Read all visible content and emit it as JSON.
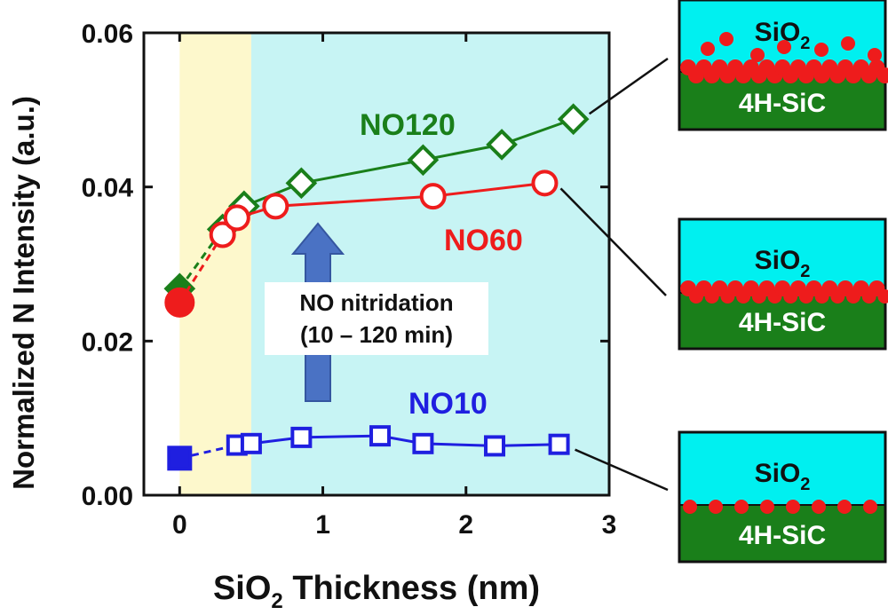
{
  "chart_data": {
    "type": "line",
    "xlabel": "SiO",
    "xlabel_sub": "2",
    "xlabel_rest": " Thickness (nm)",
    "ylabel": "Normalized N Intensity (a.u.)",
    "xlim": [
      -0.25,
      3.0
    ],
    "ylim": [
      0.0,
      0.06
    ],
    "xticks": [
      0,
      1,
      2,
      3
    ],
    "yticks": [
      0.0,
      0.02,
      0.04,
      0.06
    ],
    "xtick_labels": [
      "0",
      "1",
      "2",
      "3"
    ],
    "ytick_labels": [
      "0.00",
      "0.02",
      "0.04",
      "0.06"
    ],
    "regions": [
      {
        "x0": 0.0,
        "x1": 0.5,
        "color": "#fdf8cc"
      },
      {
        "x0": 0.5,
        "x1": 3.0,
        "color": "#c7f4f4"
      }
    ],
    "series": [
      {
        "name": "NO120",
        "color": "#1a7f1a",
        "marker": "diamond",
        "filled_point": {
          "x": 0.0,
          "y": 0.0268
        },
        "x": [
          0.3,
          0.45,
          0.85,
          1.7,
          2.25,
          2.75
        ],
        "y": [
          0.0345,
          0.0375,
          0.0405,
          0.0435,
          0.0455,
          0.0488
        ]
      },
      {
        "name": "NO60",
        "color": "#ee1c1c",
        "marker": "circle",
        "filled_point": {
          "x": 0.0,
          "y": 0.025
        },
        "x": [
          0.3,
          0.4,
          0.67,
          1.77,
          2.55
        ],
        "y": [
          0.0338,
          0.036,
          0.0375,
          0.0388,
          0.0405
        ]
      },
      {
        "name": "NO10",
        "color": "#1f1fe0",
        "marker": "square",
        "filled_point": {
          "x": 0.0,
          "y": 0.0048
        },
        "x": [
          0.4,
          0.5,
          0.85,
          1.4,
          1.7,
          2.2,
          2.65
        ],
        "y": [
          0.0065,
          0.0067,
          0.0075,
          0.0077,
          0.0067,
          0.0064,
          0.0066
        ]
      }
    ],
    "annotations": {
      "arrow_line1": "NO nitridation",
      "arrow_line2": "(10 – 120 min)",
      "arrow_color": "#4a72c4"
    }
  },
  "insets": [
    {
      "oxide": "SiO",
      "oxide_sub": "2",
      "substrate": "4H-SiC"
    },
    {
      "oxide": "SiO",
      "oxide_sub": "2",
      "substrate": "4H-SiC"
    },
    {
      "oxide": "SiO",
      "oxide_sub": "2",
      "substrate": "4H-SiC"
    }
  ],
  "colors": {
    "oxide": "#00f0f0",
    "substrate": "#1a7f1a",
    "atom": "#ee1c1c",
    "text": "#111111"
  }
}
